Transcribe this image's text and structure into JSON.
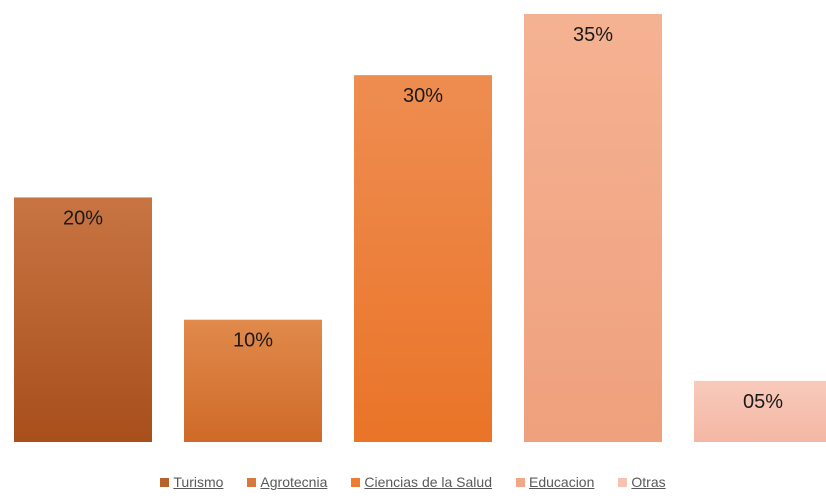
{
  "chart_data": {
    "type": "bar",
    "categories": [
      "Turismo",
      "Agrotecnia",
      "Ciencias de la Salud",
      "Educacion",
      "Otras"
    ],
    "values": [
      20,
      10,
      30,
      35,
      5
    ],
    "value_labels": [
      "20%",
      "10%",
      "30%",
      "35%",
      "05%"
    ],
    "ylim": [
      0,
      35
    ],
    "grid": false,
    "legend_position": "bottom",
    "title": "",
    "xlabel": "",
    "ylabel": "",
    "colors": {
      "Turismo": {
        "top": "#c87543",
        "bottom": "#a84f1c"
      },
      "Agrotecnia": {
        "top": "#e08a4c",
        "bottom": "#cf6a28"
      },
      "Ciencias de la Salud": {
        "top": "#ee8d51",
        "bottom": "#ea7428"
      },
      "Educacion": {
        "top": "#f5b292",
        "bottom": "#efa07d"
      },
      "Otras": {
        "top": "#f8cabb",
        "bottom": "#f4b7a4"
      }
    }
  },
  "legend": {
    "items": [
      {
        "label": "Turismo",
        "color": "#b8612b"
      },
      {
        "label": "Agrotecnia",
        "color": "#d8783c"
      },
      {
        "label": "Ciencias de la Salud",
        "color": "#ec7d32"
      },
      {
        "label": "Educacion",
        "color": "#f2a888"
      },
      {
        "label": "Otras",
        "color": "#f6c3b3"
      }
    ]
  }
}
